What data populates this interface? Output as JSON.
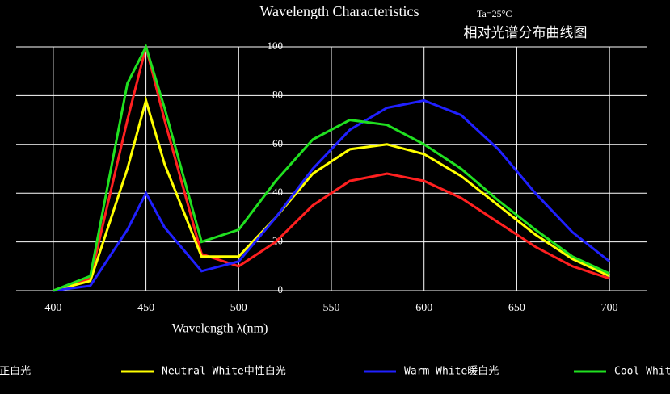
{
  "chart_data": {
    "type": "line",
    "title": "Wavelength Characteristics",
    "subtitle": "Ta=25°C",
    "chinese_title": "相对光谱分布曲线图",
    "x_label": "Wavelength λ(nm)",
    "x": [
      400,
      420,
      440,
      450,
      460,
      480,
      500,
      520,
      540,
      560,
      580,
      600,
      620,
      640,
      660,
      680,
      700
    ],
    "series": [
      {
        "name": "White正白光",
        "color": "#ff2020",
        "values": [
          0,
          5,
          70,
          100,
          70,
          15,
          10,
          20,
          35,
          45,
          48,
          45,
          38,
          28,
          18,
          10,
          5
        ]
      },
      {
        "name": "Neutral White中性白光",
        "color": "#ffff00",
        "values": [
          0,
          4,
          50,
          78,
          52,
          14,
          14,
          30,
          48,
          58,
          60,
          56,
          47,
          35,
          23,
          13,
          6
        ]
      },
      {
        "name": "Warm White暖白光",
        "color": "#2020ff",
        "values": [
          0,
          2,
          25,
          40,
          26,
          8,
          12,
          30,
          50,
          66,
          75,
          78,
          72,
          58,
          40,
          24,
          12
        ]
      },
      {
        "name": "Cool White",
        "color": "#20e020",
        "values": [
          0,
          6,
          85,
          100,
          75,
          20,
          25,
          45,
          62,
          70,
          68,
          60,
          50,
          37,
          25,
          14,
          7
        ]
      }
    ],
    "xlim": [
      380,
      720
    ],
    "xticks": [
      400,
      450,
      500,
      550,
      600,
      650,
      700
    ],
    "ylim": [
      0,
      100
    ],
    "yticks": [
      0,
      20,
      40,
      60,
      80,
      100
    ],
    "grid": true
  }
}
